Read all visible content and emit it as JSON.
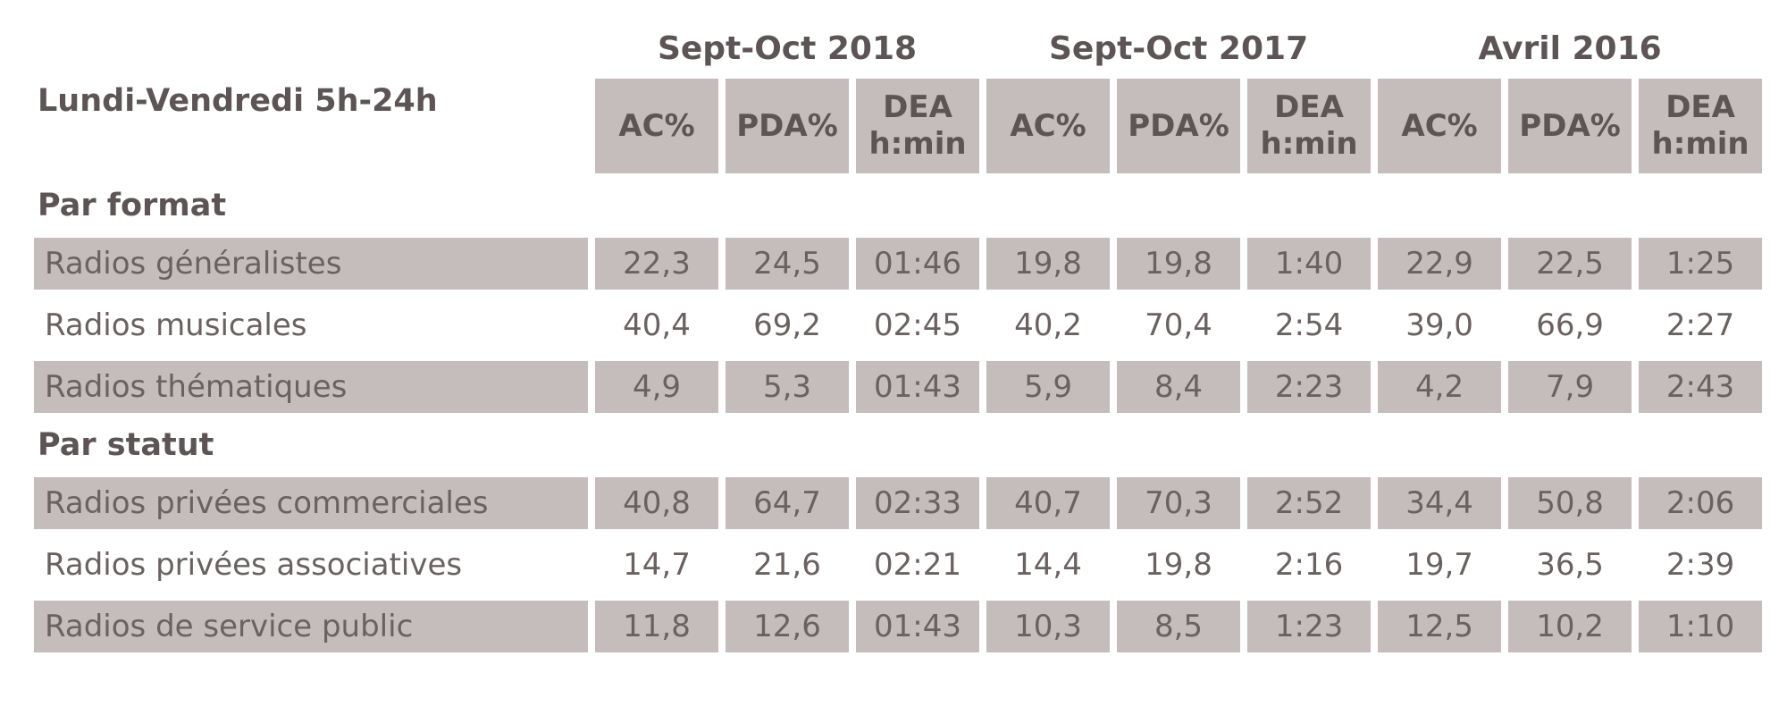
{
  "colors": {
    "cell_background": "#c5bcbc",
    "body_text": "#6a6161",
    "header_text": "#5d5555",
    "page_background": "#ffffff"
  },
  "table": {
    "row_header": "Lundi-Vendredi 5h-24h",
    "periods": [
      "Sept-Oct 2018",
      "Sept-Oct 2017",
      "Avril 2016"
    ],
    "metrics": [
      "AC%",
      "PDA%",
      "DEA\nh:min"
    ],
    "sections": [
      {
        "title": "Par format",
        "rows": [
          {
            "label": "Radios généralistes",
            "values": [
              "22,3",
              "24,5",
              "01:46",
              "19,8",
              "19,8",
              "1:40",
              "22,9",
              "22,5",
              "1:25"
            ]
          },
          {
            "label": "Radios musicales",
            "values": [
              "40,4",
              "69,2",
              "02:45",
              "40,2",
              "70,4",
              "2:54",
              "39,0",
              "66,9",
              "2:27"
            ]
          },
          {
            "label": "Radios thématiques",
            "values": [
              "4,9",
              "5,3",
              "01:43",
              "5,9",
              "8,4",
              "2:23",
              "4,2",
              "7,9",
              "2:43"
            ]
          }
        ]
      },
      {
        "title": "Par statut",
        "rows": [
          {
            "label": "Radios privées commerciales",
            "values": [
              "40,8",
              "64,7",
              "02:33",
              "40,7",
              "70,3",
              "2:52",
              "34,4",
              "50,8",
              "2:06"
            ]
          },
          {
            "label": "Radios privées associatives",
            "values": [
              "14,7",
              "21,6",
              "02:21",
              "14,4",
              "19,8",
              "2:16",
              "19,7",
              "36,5",
              "2:39"
            ]
          },
          {
            "label": "Radios de service public",
            "values": [
              "11,8",
              "12,6",
              "01:43",
              "10,3",
              "8,5",
              "1:23",
              "12,5",
              "10,2",
              "1:10"
            ]
          }
        ]
      }
    ]
  },
  "chart_data": {
    "type": "table",
    "title": "Lundi-Vendredi 5h-24h",
    "column_groups": [
      "Sept-Oct 2018",
      "Sept-Oct 2017",
      "Avril 2016"
    ],
    "columns": [
      "AC%",
      "PDA%",
      "DEA h:min",
      "AC%",
      "PDA%",
      "DEA h:min",
      "AC%",
      "PDA%",
      "DEA h:min"
    ],
    "sections": [
      {
        "title": "Par format",
        "rows": [
          {
            "label": "Radios généralistes",
            "values": [
              "22,3",
              "24,5",
              "01:46",
              "19,8",
              "19,8",
              "1:40",
              "22,9",
              "22,5",
              "1:25"
            ]
          },
          {
            "label": "Radios musicales",
            "values": [
              "40,4",
              "69,2",
              "02:45",
              "40,2",
              "70,4",
              "2:54",
              "39,0",
              "66,9",
              "2:27"
            ]
          },
          {
            "label": "Radios thématiques",
            "values": [
              "4,9",
              "5,3",
              "01:43",
              "5,9",
              "8,4",
              "2:23",
              "4,2",
              "7,9",
              "2:43"
            ]
          }
        ]
      },
      {
        "title": "Par statut",
        "rows": [
          {
            "label": "Radios privées commerciales",
            "values": [
              "40,8",
              "64,7",
              "02:33",
              "40,7",
              "70,3",
              "2:52",
              "34,4",
              "50,8",
              "2:06"
            ]
          },
          {
            "label": "Radios privées associatives",
            "values": [
              "14,7",
              "21,6",
              "02:21",
              "14,4",
              "19,8",
              "2:16",
              "19,7",
              "36,5",
              "2:39"
            ]
          },
          {
            "label": "Radios de service public",
            "values": [
              "11,8",
              "12,6",
              "01:43",
              "10,3",
              "8,5",
              "1:23",
              "12,5",
              "10,2",
              "1:10"
            ]
          }
        ]
      }
    ]
  }
}
